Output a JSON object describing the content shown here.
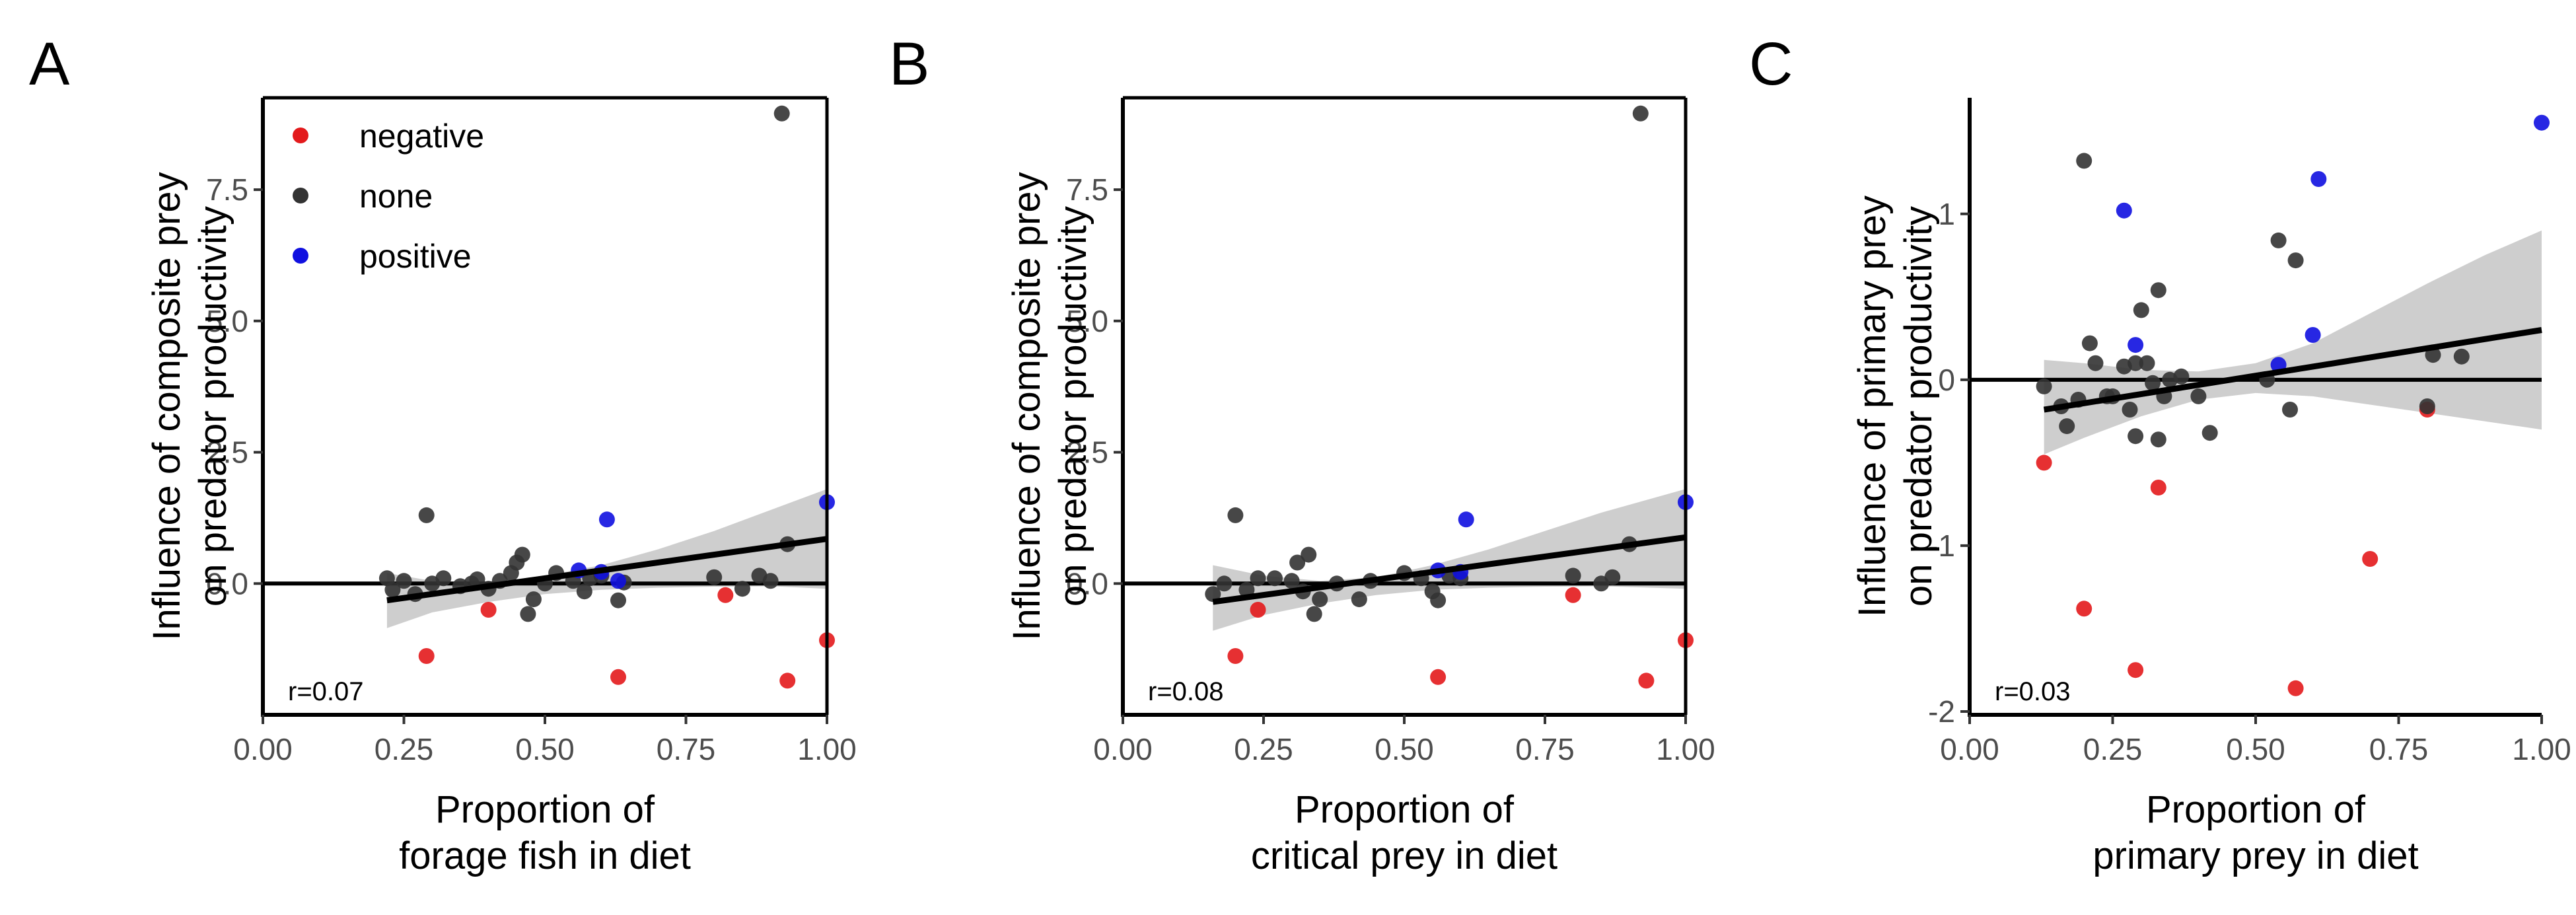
{
  "figure": {
    "panels": [
      "A",
      "B",
      "C"
    ]
  },
  "chart_data": [
    {
      "panel": "A",
      "type": "scatter",
      "xlabel": [
        "Proportion of",
        "forage fish in diet"
      ],
      "ylabel": [
        "Influence of composite prey",
        "on predator productivity"
      ],
      "xlim": [
        0,
        1.0
      ],
      "ylim": [
        -2.5,
        9.25
      ],
      "xticks": [
        0.0,
        0.25,
        0.5,
        0.75,
        1.0
      ],
      "xtick_labels": [
        "0.00",
        "0.25",
        "0.50",
        "0.75",
        "1.00"
      ],
      "yticks": [
        0.0,
        2.5,
        5.0,
        7.5
      ],
      "ytick_labels": [
        "0.0",
        "2.5",
        "5.0",
        "7.5"
      ],
      "hline": 0,
      "annotation": "r=0.07",
      "legend": {
        "placement": "top-left",
        "entries": [
          {
            "label": "negative",
            "color": "#e31a1c"
          },
          {
            "label": "none",
            "color": "#333333"
          },
          {
            "label": "positive",
            "color": "#1010e0"
          }
        ]
      },
      "trend": {
        "x": [
          0.22,
          1.0
        ],
        "y": [
          -0.32,
          0.85
        ]
      },
      "ci": {
        "x": [
          0.22,
          0.3,
          0.4,
          0.5,
          0.6,
          0.7,
          0.8,
          0.9,
          1.0
        ],
        "lower": [
          -0.85,
          -0.55,
          -0.35,
          -0.2,
          -0.12,
          -0.08,
          -0.06,
          -0.05,
          -0.1
        ],
        "upper": [
          0.2,
          0.05,
          0.0,
          0.15,
          0.35,
          0.65,
          1.0,
          1.4,
          1.8
        ]
      },
      "series": [
        {
          "name": "negative",
          "color": "#e31a1c",
          "x": [
            0.29,
            0.4,
            0.63,
            0.82,
            0.93,
            1.0
          ],
          "y": [
            -1.38,
            -0.5,
            -1.78,
            -0.22,
            -1.85,
            -1.08
          ]
        },
        {
          "name": "none",
          "color": "#333333",
          "x": [
            0.22,
            0.23,
            0.25,
            0.27,
            0.29,
            0.3,
            0.32,
            0.35,
            0.37,
            0.38,
            0.4,
            0.42,
            0.44,
            0.45,
            0.46,
            0.47,
            0.48,
            0.5,
            0.52,
            0.55,
            0.57,
            0.58,
            0.6,
            0.63,
            0.64,
            0.8,
            0.85,
            0.88,
            0.9,
            0.92,
            0.93
          ],
          "y": [
            0.1,
            -0.12,
            0.05,
            -0.2,
            1.3,
            0.0,
            0.1,
            -0.05,
            0.0,
            0.08,
            -0.1,
            0.05,
            0.2,
            0.4,
            0.55,
            -0.58,
            -0.3,
            0.0,
            0.2,
            0.05,
            -0.15,
            0.1,
            0.15,
            -0.32,
            0.02,
            0.12,
            -0.1,
            0.15,
            0.05,
            8.95,
            0.75
          ]
        },
        {
          "name": "positive",
          "color": "#1010e0",
          "x": [
            0.56,
            0.6,
            0.61,
            0.63,
            1.0
          ],
          "y": [
            0.25,
            0.22,
            1.22,
            0.05,
            1.55
          ]
        }
      ]
    },
    {
      "panel": "B",
      "type": "scatter",
      "xlabel": [
        "Proportion of",
        "critical prey in diet"
      ],
      "ylabel": [
        "Influence of composite prey",
        "on predator productivity"
      ],
      "xlim": [
        0,
        1.0
      ],
      "ylim": [
        -2.5,
        9.25
      ],
      "xticks": [
        0.0,
        0.25,
        0.5,
        0.75,
        1.0
      ],
      "xtick_labels": [
        "0.00",
        "0.25",
        "0.50",
        "0.75",
        "1.00"
      ],
      "yticks": [
        0.0,
        2.5,
        5.0,
        7.5
      ],
      "ytick_labels": [
        "0.0",
        "2.5",
        "5.0",
        "7.5"
      ],
      "hline": 0,
      "annotation": "r=0.08",
      "trend": {
        "x": [
          0.16,
          1.0
        ],
        "y": [
          -0.35,
          0.88
        ]
      },
      "ci": {
        "x": [
          0.16,
          0.25,
          0.35,
          0.45,
          0.55,
          0.65,
          0.75,
          0.85,
          1.0
        ],
        "lower": [
          -0.9,
          -0.6,
          -0.38,
          -0.22,
          -0.12,
          -0.08,
          -0.06,
          -0.05,
          -0.1
        ],
        "upper": [
          0.35,
          0.15,
          0.05,
          0.12,
          0.35,
          0.65,
          1.0,
          1.35,
          1.8
        ]
      },
      "series": [
        {
          "name": "negative",
          "color": "#e31a1c",
          "x": [
            0.2,
            0.24,
            0.56,
            0.8,
            0.93,
            1.0
          ],
          "y": [
            -1.38,
            -0.5,
            -1.78,
            -0.22,
            -1.85,
            -1.08
          ]
        },
        {
          "name": "none",
          "color": "#333333",
          "x": [
            0.16,
            0.18,
            0.2,
            0.22,
            0.24,
            0.27,
            0.3,
            0.31,
            0.32,
            0.33,
            0.34,
            0.35,
            0.38,
            0.42,
            0.44,
            0.5,
            0.53,
            0.55,
            0.56,
            0.58,
            0.6,
            0.8,
            0.85,
            0.87,
            0.9,
            0.92
          ],
          "y": [
            -0.2,
            0.0,
            1.3,
            -0.12,
            0.1,
            0.1,
            0.05,
            0.4,
            -0.15,
            0.55,
            -0.58,
            -0.3,
            0.0,
            -0.3,
            0.05,
            0.2,
            0.1,
            -0.15,
            -0.32,
            0.15,
            0.1,
            0.15,
            0.0,
            0.12,
            0.75,
            8.95
          ]
        },
        {
          "name": "positive",
          "color": "#1010e0",
          "x": [
            0.56,
            0.6,
            0.61,
            1.0
          ],
          "y": [
            0.25,
            0.22,
            1.22,
            1.55
          ]
        }
      ]
    },
    {
      "panel": "C",
      "type": "scatter",
      "xlabel": [
        "Proportion of",
        "primary prey in diet"
      ],
      "ylabel": [
        "Influence of primary prey",
        "on predator productivity"
      ],
      "xlim": [
        0,
        1.0
      ],
      "ylim": [
        -2.02,
        1.7
      ],
      "xticks": [
        0.0,
        0.25,
        0.5,
        0.75,
        1.0
      ],
      "xtick_labels": [
        "0.00",
        "0.25",
        "0.50",
        "0.75",
        "1.00"
      ],
      "yticks": [
        -2,
        -1,
        0,
        1
      ],
      "ytick_labels": [
        "-2",
        "-1",
        "0",
        "1"
      ],
      "hline": 0,
      "annotation": "r=0.03",
      "trend": {
        "x": [
          0.13,
          1.0
        ],
        "y": [
          -0.18,
          0.3
        ]
      },
      "ci": {
        "x": [
          0.13,
          0.2,
          0.3,
          0.4,
          0.5,
          0.6,
          0.7,
          0.8,
          0.9,
          1.0
        ],
        "lower": [
          -0.45,
          -0.35,
          -0.22,
          -0.12,
          -0.08,
          -0.1,
          -0.15,
          -0.2,
          -0.25,
          -0.3
        ],
        "upper": [
          0.12,
          0.1,
          0.06,
          0.05,
          0.1,
          0.22,
          0.4,
          0.58,
          0.75,
          0.9
        ]
      },
      "series": [
        {
          "name": "negative",
          "color": "#e31a1c",
          "x": [
            0.13,
            0.2,
            0.29,
            0.33,
            0.57,
            0.7,
            0.8
          ],
          "y": [
            -0.5,
            -1.38,
            -1.75,
            -0.65,
            -1.86,
            -1.08,
            -0.18
          ]
        },
        {
          "name": "none",
          "color": "#333333",
          "x": [
            0.13,
            0.16,
            0.17,
            0.19,
            0.2,
            0.21,
            0.22,
            0.24,
            0.25,
            0.27,
            0.28,
            0.29,
            0.29,
            0.3,
            0.31,
            0.32,
            0.33,
            0.33,
            0.34,
            0.35,
            0.37,
            0.4,
            0.42,
            0.52,
            0.54,
            0.56,
            0.57,
            0.8,
            0.81,
            0.86
          ],
          "y": [
            -0.04,
            -0.16,
            -0.28,
            -0.12,
            1.32,
            0.22,
            0.1,
            -0.1,
            -0.1,
            0.08,
            -0.18,
            -0.34,
            0.1,
            0.42,
            0.1,
            -0.02,
            0.54,
            -0.36,
            -0.1,
            0.0,
            0.02,
            -0.1,
            -0.32,
            0.0,
            0.84,
            -0.18,
            0.72,
            -0.16,
            0.15,
            0.14
          ]
        },
        {
          "name": "positive",
          "color": "#1010e0",
          "x": [
            0.27,
            0.29,
            0.54,
            0.6,
            0.61,
            1.0
          ],
          "y": [
            1.02,
            0.21,
            0.09,
            0.27,
            1.21,
            1.55
          ]
        }
      ]
    }
  ]
}
